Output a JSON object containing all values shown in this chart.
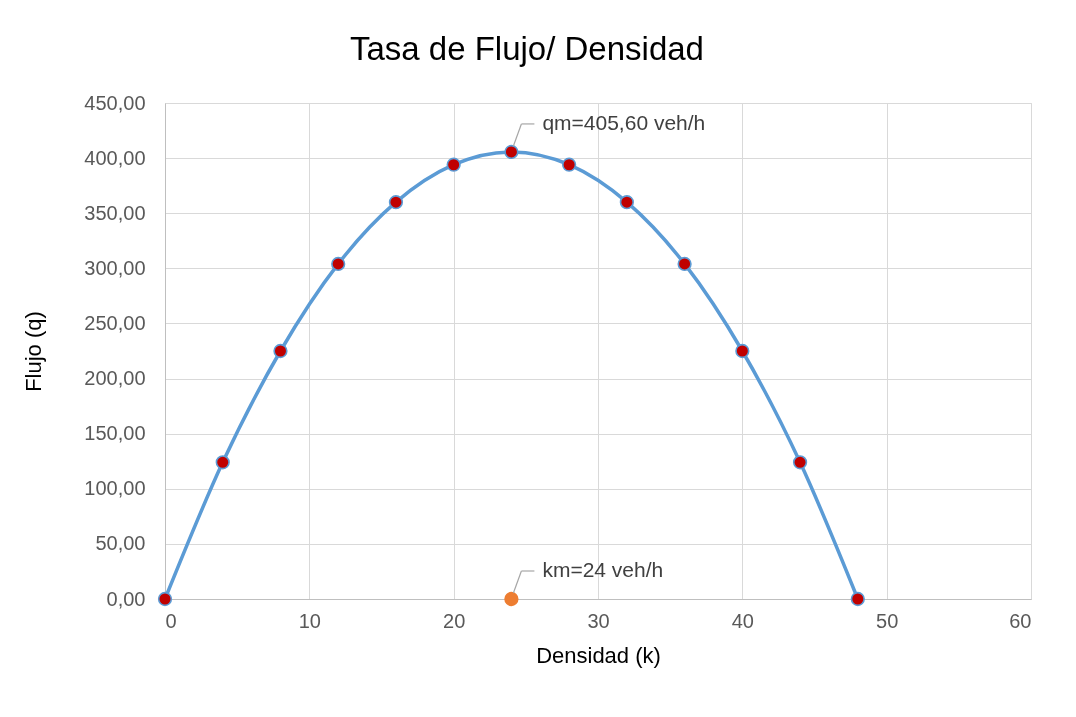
{
  "chart_data": {
    "type": "line",
    "title": "Tasa de Flujo/ Densidad",
    "xlabel": "Densidad (k)",
    "ylabel": "Flujo (q)",
    "series": [
      {
        "color": "#5b9bd5",
        "marker": "circle",
        "colors": [
          "#c00000",
          "#c00000",
          "#c00000",
          "#c00000",
          "#c00000",
          "#c00000",
          "#c00000",
          "#c00000",
          "#c00000",
          "#c00000",
          "#c00000",
          "#c00000",
          "#c00000"
        ],
        "x": [
          0,
          4,
          8,
          12,
          16,
          20,
          24,
          28,
          32,
          36,
          40,
          44,
          48
        ],
        "values": [
          0,
          124,
          225,
          304,
          360,
          394,
          405.6,
          394,
          360,
          304,
          225,
          124,
          0
        ]
      },
      {
        "type": "scatter",
        "color": "#ed7d31",
        "marker": "circle",
        "x": [
          24
        ],
        "values": [
          0
        ]
      }
    ],
    "annotations": [
      {
        "text": "qm=405,60 veh/h",
        "x": 24,
        "y": 405.6
      },
      {
        "text": "km=24 veh/h",
        "x": 24,
        "y": 0
      }
    ],
    "xlim": [
      0,
      60
    ],
    "xticks": [
      0,
      10,
      20,
      30,
      40,
      50,
      60
    ],
    "ylim": [
      0,
      450
    ],
    "yticks": [
      {
        "value": 0,
        "label": "0,00"
      },
      {
        "value": 50,
        "label": "50,00"
      },
      {
        "value": 100,
        "label": "100,00"
      },
      {
        "value": 150,
        "label": "150,00"
      },
      {
        "value": 200,
        "label": "200,00"
      },
      {
        "value": 250,
        "label": "250,00"
      },
      {
        "value": 300,
        "label": "300,00"
      },
      {
        "value": 350,
        "label": "350,00"
      },
      {
        "value": 400,
        "label": "400,00"
      },
      {
        "value": 450,
        "label": "450,00"
      }
    ],
    "grid": true,
    "line_style": "solid"
  }
}
